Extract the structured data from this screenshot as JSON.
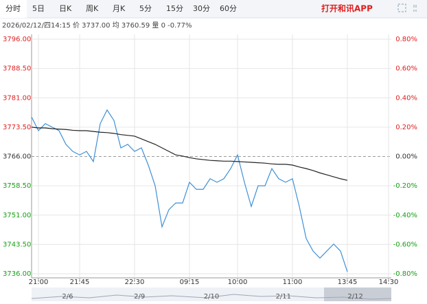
{
  "header": {
    "tabs": [
      "分时",
      "5日",
      "日K",
      "周K",
      "月K",
      "5分",
      "15分",
      "30分",
      "60分"
    ],
    "active_tab": 0,
    "app_link": "打开和讯APP"
  },
  "info": "2026/02/12/四14:15  价 3737.00  均 3760.59  量 0  -0.77%",
  "navigator": {
    "dates": [
      "2/6",
      "2/9",
      "2/10",
      "2/11",
      "2/12"
    ]
  },
  "chart_data": {
    "type": "line",
    "categories": [
      null,
      "21:00",
      null,
      null,
      null,
      null,
      null,
      "21:45",
      null,
      null,
      null,
      null,
      null,
      null,
      null,
      "22:30",
      null,
      null,
      null,
      null,
      null,
      null,
      null,
      "09:15",
      null,
      null,
      null,
      null,
      null,
      null,
      "10:00",
      null,
      null,
      null,
      null,
      null,
      null,
      null,
      "11:00",
      null,
      null,
      null,
      null,
      null,
      null,
      null,
      "13:45",
      null,
      null,
      null,
      null,
      null,
      "14:30"
    ],
    "series": [
      {
        "name": "价",
        "color": "#3d8fd6",
        "values": [
          3776.1,
          3772.6,
          3774.4,
          3773.5,
          3772.6,
          3769.1,
          3767.3,
          3766.4,
          3767.3,
          3764.7,
          3774.4,
          3777.9,
          3775.2,
          3768.2,
          3769.1,
          3767.3,
          3768.2,
          3763.8,
          3758.5,
          3748.0,
          3752.4,
          3754.1,
          3754.1,
          3759.4,
          3757.6,
          3757.6,
          3760.3,
          3759.4,
          3760.3,
          3762.9,
          3766.4,
          3759.4,
          3753.2,
          3758.5,
          3758.5,
          3762.9,
          3760.3,
          3759.4,
          3760.3,
          3753.2,
          3745.0,
          3741.8,
          3740.0,
          3741.8,
          3743.6,
          3741.8,
          3736.5,
          null,
          null,
          null,
          null,
          null,
          null
        ]
      },
      {
        "name": "均",
        "color": "#222222",
        "values": [
          3773.5,
          3773.3,
          3773.3,
          3773.1,
          3773.0,
          3772.9,
          3772.7,
          3772.6,
          3772.6,
          3772.4,
          3772.2,
          3772.1,
          3771.9,
          3771.6,
          3771.4,
          3771.2,
          3770.5,
          3769.8,
          3769.1,
          3768.2,
          3767.3,
          3766.4,
          3766.1,
          3765.7,
          3765.4,
          3765.2,
          3765.0,
          3764.9,
          3764.8,
          3764.8,
          3764.7,
          3764.6,
          3764.5,
          3764.4,
          3764.3,
          3764.1,
          3764.0,
          3764.0,
          3763.8,
          3763.3,
          3762.9,
          3762.4,
          3761.8,
          3761.3,
          3760.8,
          3760.3,
          3759.9,
          null,
          null,
          null,
          null,
          null,
          null
        ]
      }
    ],
    "ylim": [
      3736,
      3796
    ],
    "yticks": [
      {
        "value": 3796,
        "label": "3796.00"
      },
      {
        "value": 3788.5,
        "label": "3788.50"
      },
      {
        "value": 3781,
        "label": "3781.00"
      },
      {
        "value": 3773.5,
        "label": "3773.50"
      },
      {
        "value": 3766,
        "label": "3766.00"
      },
      {
        "value": 3758.5,
        "label": "3758.50"
      },
      {
        "value": 3751,
        "label": "3751.00"
      },
      {
        "value": 3743.5,
        "label": "3743.50"
      },
      {
        "value": 3736,
        "label": "3736.00"
      }
    ],
    "y2lim": [
      -0.8,
      0.8
    ],
    "y2ticks": [
      {
        "value": 0.8,
        "label": "0.80%"
      },
      {
        "value": 0.6,
        "label": "0.60%"
      },
      {
        "value": 0.4,
        "label": "0.40%"
      },
      {
        "value": 0.2,
        "label": "0.20%"
      },
      {
        "value": 0,
        "label": "0.00%"
      },
      {
        "value": -0.2,
        "label": "-0.20%"
      },
      {
        "value": -0.4,
        "label": "-0.40%"
      },
      {
        "value": -0.6,
        "label": "-0.60%"
      },
      {
        "value": -0.8,
        "label": "-0.80%"
      }
    ],
    "grid": true
  }
}
